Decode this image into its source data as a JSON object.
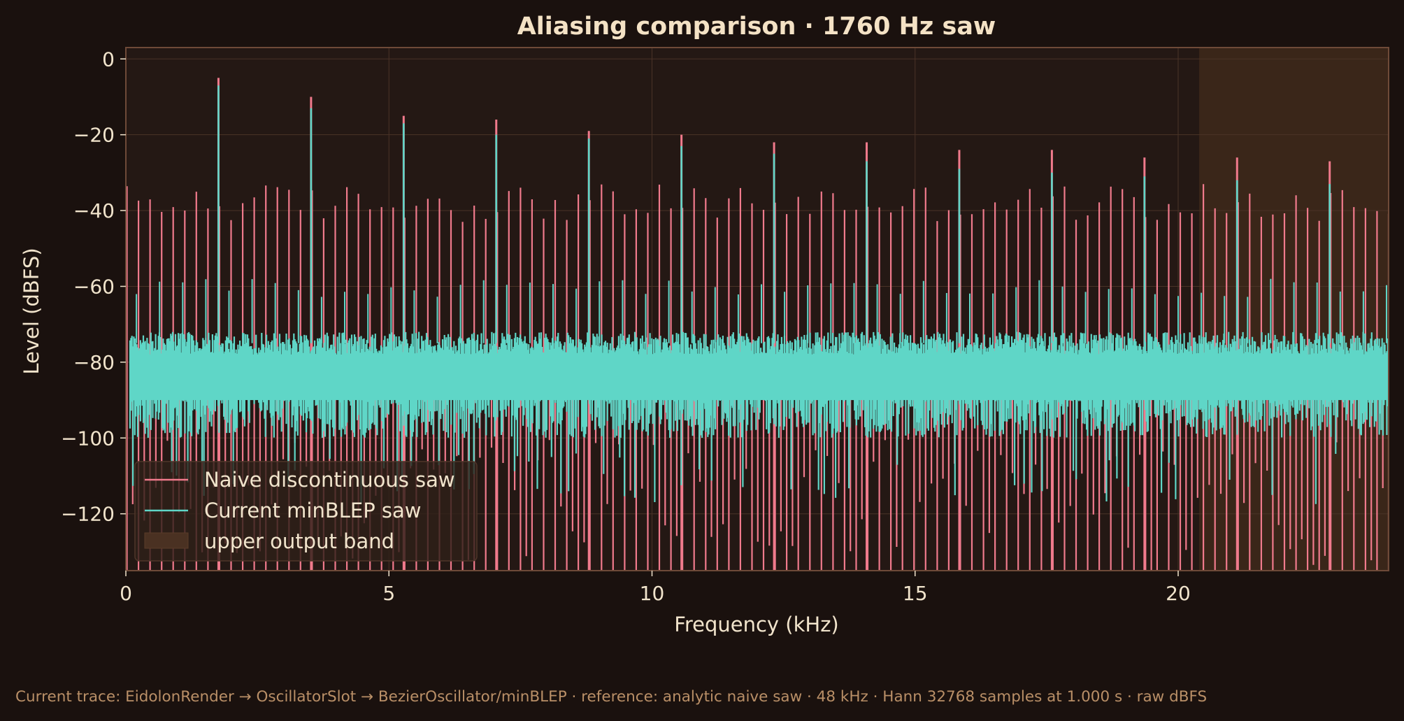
{
  "chart_data": {
    "type": "line",
    "title": "Aliasing comparison · 1760 Hz saw",
    "xlabel": "Frequency (kHz)",
    "ylabel": "Level (dBFS)",
    "xlim": [
      0,
      24
    ],
    "ylim": [
      -135,
      3
    ],
    "x_ticks": [
      0,
      5,
      10,
      15,
      20
    ],
    "y_ticks": [
      0,
      -20,
      -40,
      -60,
      -80,
      -100,
      -120
    ],
    "x_tick_labels": [
      "0",
      "5",
      "10",
      "15",
      "20"
    ],
    "y_tick_labels": [
      "0",
      "−20",
      "−40",
      "−60",
      "−80",
      "−100",
      "−120"
    ],
    "grid": true,
    "legend_position": "lower-left",
    "fundamental_khz": 1.76,
    "series": [
      {
        "name": "Naive discontinuous saw",
        "color": "#f07a8c",
        "harmonic_peaks_khz": [
          1.76,
          3.52,
          5.28,
          7.04,
          8.8,
          10.56,
          12.32,
          14.08,
          15.84,
          17.6,
          19.36,
          21.12,
          22.88
        ],
        "harmonic_peaks_db": [
          -5,
          -10,
          -15,
          -16,
          -19,
          -20,
          -22,
          -22,
          -24,
          -24,
          -26,
          -26,
          -27
        ],
        "alias_peak_range_db": [
          -43,
          -33
        ],
        "floor_range_db": [
          -135,
          -100
        ]
      },
      {
        "name": "Current minBLEP saw",
        "color": "#5fd6c7",
        "harmonic_peaks_khz": [
          1.76,
          3.52,
          5.28,
          7.04,
          8.8,
          10.56,
          12.32,
          14.08,
          15.84,
          17.6,
          19.36,
          21.12,
          22.88
        ],
        "harmonic_peaks_db": [
          -7,
          -13,
          -17,
          -20,
          -21,
          -23,
          -25,
          -27,
          -29,
          -30,
          -31,
          -32,
          -33
        ],
        "noise_band_db": [
          -100,
          -72
        ],
        "spur_range_db": [
          -63,
          -58
        ]
      }
    ],
    "shaded_bands": [
      {
        "name": "upper output band",
        "x_range": [
          20.4,
          24
        ],
        "color": "#3a2619"
      }
    ]
  },
  "footnote": "Current trace: EidolonRender → OscillatorSlot → BezierOscillator/minBLEP · reference: analytic naive saw · 48 kHz · Hann 32768 samples at 1.000 s · raw dBFS",
  "colors": {
    "background": "#1a110e",
    "axes_bg": "#241814",
    "grid": "#4a3327",
    "spine": "#6e4a38",
    "text": "#f1e4cc",
    "footnote": "#b98f67"
  }
}
